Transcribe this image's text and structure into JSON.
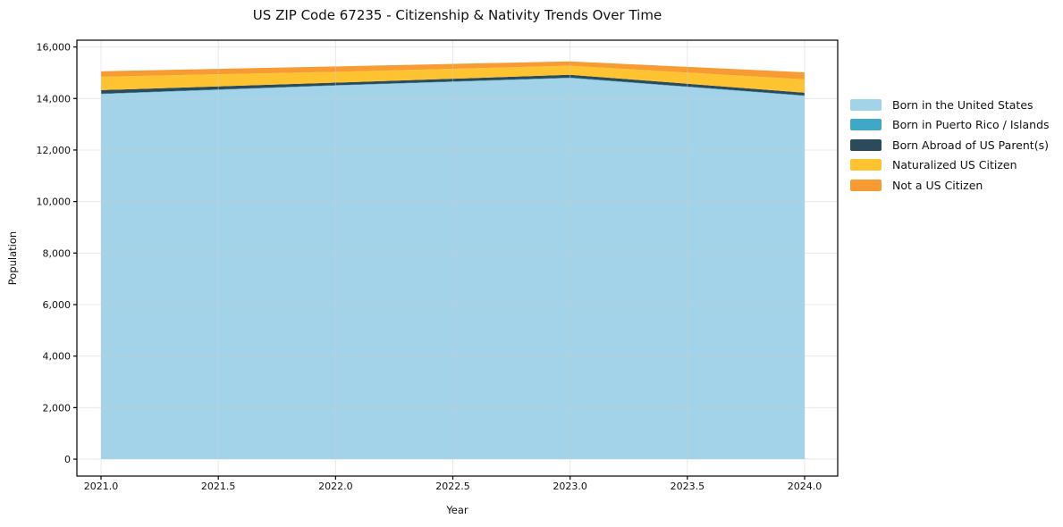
{
  "title": "US ZIP Code 67235 - Citizenship & Nativity Trends Over Time",
  "chart_data": {
    "type": "area",
    "stacked": true,
    "title": "US ZIP Code 67235 - Citizenship & Nativity Trends Over Time",
    "xlabel": "Year",
    "ylabel": "Population",
    "x": [
      2021,
      2022,
      2023,
      2024
    ],
    "series": [
      {
        "name": "Born in the United States",
        "color": "#a3d3e8",
        "values": [
          14170,
          14500,
          14790,
          14100
        ]
      },
      {
        "name": "Born in Puerto Rico / Islands",
        "color": "#3fa8c6",
        "values": [
          15,
          15,
          20,
          15
        ]
      },
      {
        "name": "Born Abroad of US Parent(s)",
        "color": "#2b4a5c",
        "values": [
          140,
          100,
          110,
          110
        ]
      },
      {
        "name": "Naturalized US Citizen",
        "color": "#fdc330",
        "values": [
          520,
          420,
          350,
          520
        ]
      },
      {
        "name": "Not a US Citizen",
        "color": "#f89b33",
        "values": [
          210,
          210,
          170,
          270
        ]
      }
    ],
    "totals": [
      15055,
      15245,
      15440,
      15015
    ],
    "x_ticks": [
      "2021.0",
      "2021.5",
      "2022.0",
      "2022.5",
      "2023.0",
      "2023.5",
      "2024.0"
    ],
    "y_ticks": [
      "0",
      "2,000",
      "4,000",
      "6,000",
      "8,000",
      "10,000",
      "12,000",
      "14,000",
      "16,000"
    ],
    "xlim": [
      2020.897,
      2024.141
    ],
    "ylim": [
      -657,
      16263
    ],
    "grid": true,
    "grid_color": "#cccccc",
    "axis_color": "#000000",
    "legend_position": "right-outside"
  }
}
